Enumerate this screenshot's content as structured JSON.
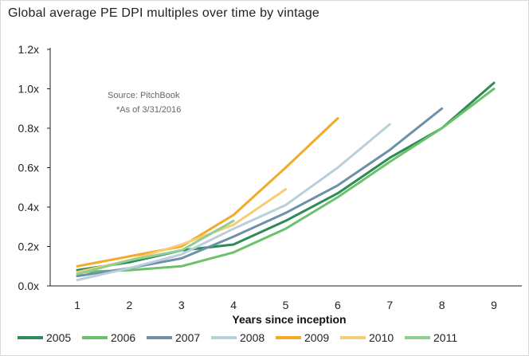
{
  "title": "Global average PE DPI multiples over time by vintage",
  "source_note": "Source: PitchBook",
  "asof_note": "*As of 3/31/2016",
  "chart_data": {
    "type": "line",
    "title": "Global average PE DPI multiples over time by vintage",
    "xlabel": "Years since inception",
    "ylabel": "",
    "x_ticks": [
      "1",
      "2",
      "3",
      "4",
      "5",
      "6",
      "7",
      "8",
      "9"
    ],
    "y_ticks": [
      "0.0x",
      "0.2x",
      "0.4x",
      "0.6x",
      "0.8x",
      "1.0x",
      "1.2x"
    ],
    "xlim": [
      1,
      9
    ],
    "ylim": [
      0,
      1.2
    ],
    "grid": false,
    "legend_position": "bottom",
    "series": [
      {
        "name": "2005",
        "color": "#2e8b57",
        "x": [
          1,
          2,
          3,
          4,
          5,
          6,
          7,
          8,
          9
        ],
        "y": [
          0.08,
          0.12,
          0.18,
          0.21,
          0.33,
          0.47,
          0.65,
          0.8,
          1.03
        ]
      },
      {
        "name": "2006",
        "color": "#6cc26c",
        "x": [
          1,
          2,
          3,
          4,
          5,
          6,
          7,
          8,
          9
        ],
        "y": [
          0.07,
          0.08,
          0.1,
          0.17,
          0.29,
          0.45,
          0.63,
          0.8,
          1.0
        ]
      },
      {
        "name": "2007",
        "color": "#6e91a9",
        "x": [
          1,
          2,
          3,
          4,
          5,
          6,
          7,
          8
        ],
        "y": [
          0.05,
          0.09,
          0.14,
          0.25,
          0.37,
          0.51,
          0.69,
          0.9
        ]
      },
      {
        "name": "2008",
        "color": "#b9cfdc",
        "x": [
          1,
          2,
          3,
          4,
          5,
          6,
          7
        ],
        "y": [
          0.03,
          0.09,
          0.16,
          0.29,
          0.41,
          0.6,
          0.82
        ]
      },
      {
        "name": "2009",
        "color": "#f2aa28",
        "x": [
          1,
          2,
          3,
          4,
          5,
          6
        ],
        "y": [
          0.1,
          0.15,
          0.2,
          0.36,
          0.6,
          0.85
        ]
      },
      {
        "name": "2010",
        "color": "#f5cd78",
        "x": [
          1,
          2,
          3,
          4,
          5
        ],
        "y": [
          0.07,
          0.13,
          0.21,
          0.31,
          0.49
        ]
      },
      {
        "name": "2011",
        "color": "#8fcf8f",
        "x": [
          1,
          2,
          3,
          4
        ],
        "y": [
          0.06,
          0.13,
          0.18,
          0.33
        ]
      }
    ]
  }
}
